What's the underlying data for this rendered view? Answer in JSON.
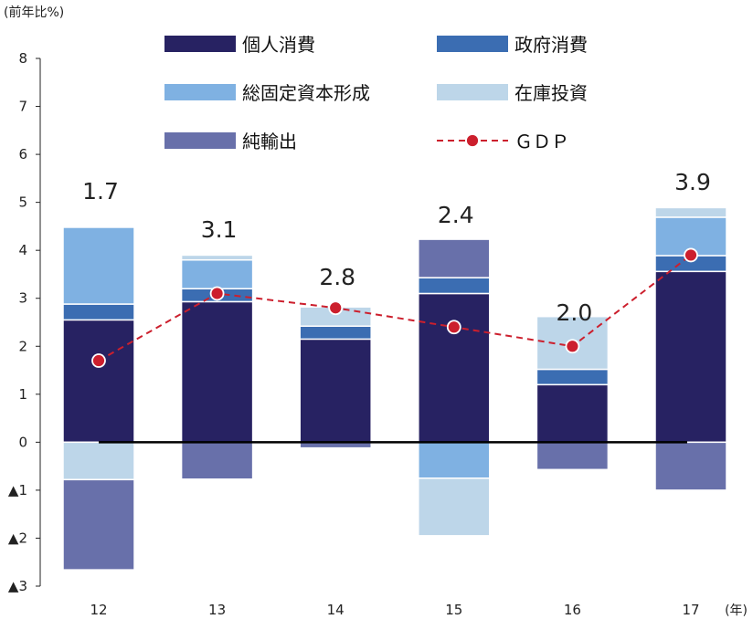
{
  "chart_data": {
    "type": "bar",
    "stacked": true,
    "unit_label": "(前年比%)",
    "x_unit_label": "(年)",
    "categories": [
      "12",
      "13",
      "14",
      "15",
      "16",
      "17"
    ],
    "ylim": [
      -3,
      8
    ],
    "y_ticks": [
      {
        "value": 8,
        "label": "8"
      },
      {
        "value": 7,
        "label": "7"
      },
      {
        "value": 6,
        "label": "6"
      },
      {
        "value": 5,
        "label": "5"
      },
      {
        "value": 4,
        "label": "4"
      },
      {
        "value": 3,
        "label": "3"
      },
      {
        "value": 2,
        "label": "2"
      },
      {
        "value": 1,
        "label": "1"
      },
      {
        "value": 0,
        "label": "0"
      },
      {
        "value": -1,
        "label": "▲1"
      },
      {
        "value": -2,
        "label": "▲2"
      },
      {
        "value": -3,
        "label": "▲3"
      }
    ],
    "series": [
      {
        "name": "個人消費",
        "color": "#272262",
        "values": [
          2.55,
          2.93,
          2.15,
          3.1,
          1.2,
          3.56
        ]
      },
      {
        "name": "政府消費",
        "color": "#3b6db2",
        "values": [
          0.33,
          0.27,
          0.27,
          0.33,
          0.32,
          0.33
        ]
      },
      {
        "name": "総固定資本形成",
        "color": "#7fb1e2",
        "values": [
          1.6,
          0.6,
          0.0,
          -0.75,
          0.0,
          0.8
        ]
      },
      {
        "name": "在庫投資",
        "color": "#bdd6e9",
        "values": [
          -0.78,
          0.1,
          0.4,
          -1.2,
          1.1,
          0.2
        ]
      },
      {
        "name": "純輸出",
        "color": "#6870aa",
        "values": [
          -1.88,
          -0.77,
          -0.12,
          0.8,
          -0.57,
          -1.0
        ]
      }
    ],
    "line": {
      "name": "ＧＤＰ",
      "color": "#cc1f2d",
      "values": [
        1.7,
        3.1,
        2.8,
        2.4,
        2.0,
        3.9
      ]
    },
    "gdp_labels": [
      "1.7",
      "3.1",
      "2.8",
      "2.4",
      "2.0",
      "3.9"
    ],
    "legend_placement": "top",
    "grid": false
  }
}
